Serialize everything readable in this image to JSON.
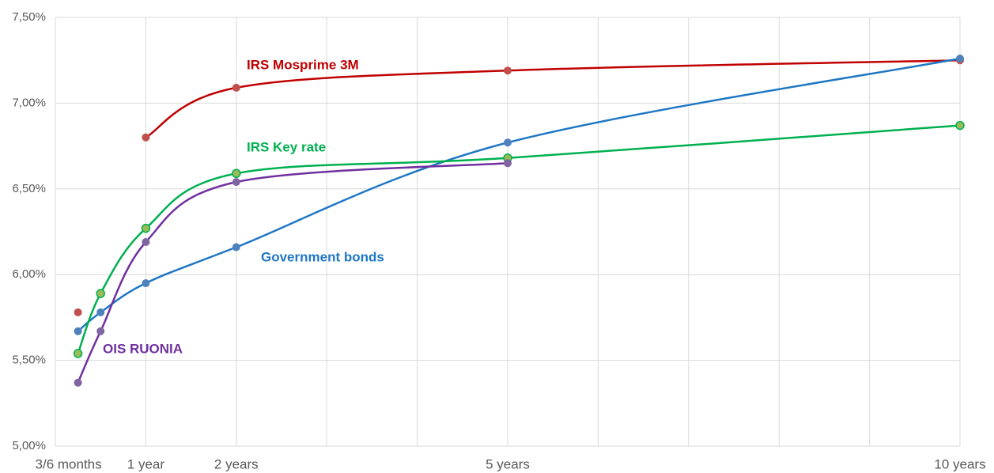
{
  "chart_data": {
    "type": "line",
    "x": [
      0.25,
      0.5,
      1,
      2,
      5,
      10
    ],
    "series": [
      {
        "name": "IRS Mosprime 3M",
        "color": "#c00000",
        "marker_color": "#c0504d",
        "values": [
          5.78,
          null,
          6.8,
          7.09,
          7.19,
          7.25
        ]
      },
      {
        "name": "Government bonds",
        "color": "#1f77c4",
        "marker_color": "#4f81bd",
        "values": [
          5.67,
          5.78,
          5.95,
          6.16,
          6.77,
          7.26
        ]
      },
      {
        "name": "IRS Key rate",
        "color": "#00b050",
        "marker_color": "#9bbb59",
        "values": [
          5.54,
          5.89,
          6.27,
          6.59,
          6.68,
          6.87
        ]
      },
      {
        "name": "OIS RUONIA",
        "color": "#7030a0",
        "marker_color": "#8064a2",
        "values": [
          5.37,
          5.67,
          6.19,
          6.54,
          6.65,
          null
        ]
      }
    ],
    "xlim": [
      0,
      10
    ],
    "xticks": [
      {
        "value": 0.25,
        "label": "3/6 months"
      },
      {
        "value": 1,
        "label": "1 year"
      },
      {
        "value": 2,
        "label": "2 years"
      },
      {
        "value": 5,
        "label": "5 years"
      },
      {
        "value": 10,
        "label": "10 years"
      }
    ],
    "xgrid": [
      0,
      1,
      2,
      3,
      4,
      5,
      6,
      7,
      8,
      9,
      10
    ],
    "ylim": [
      5.0,
      7.5
    ],
    "yticks": [
      {
        "value": 5.0,
        "label": "5,00%"
      },
      {
        "value": 5.5,
        "label": "5,50%"
      },
      {
        "value": 6.0,
        "label": "6,00%"
      },
      {
        "value": 6.5,
        "label": "6,50%"
      },
      {
        "value": 7.0,
        "label": "7,00%"
      },
      {
        "value": 7.5,
        "label": "7,50%"
      }
    ],
    "grid": true
  }
}
